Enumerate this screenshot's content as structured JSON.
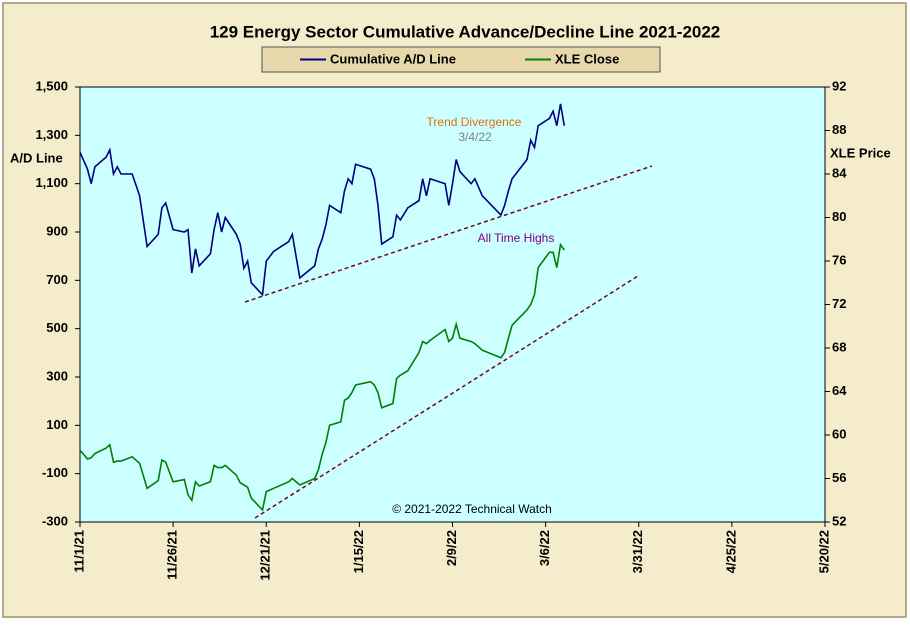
{
  "chart_data": {
    "type": "line",
    "title": "129 Energy Sector Cumulative Advance/Decline Line 2021-2022",
    "y_label": "A/D Line",
    "y2_label": "XLE Price",
    "annotations": [
      "Trend Divergence",
      "3/4/22",
      "All Time Highs",
      "© 2021-2022 Technical Watch"
    ],
    "x": [
      "11/1/21",
      "11/3/21",
      "11/4/21",
      "11/5/21",
      "11/8/21",
      "11/9/21",
      "11/10/21",
      "11/11/21",
      "11/12/21",
      "11/15/21",
      "11/17/21",
      "11/19/21",
      "11/22/21",
      "11/23/21",
      "11/24/21",
      "11/26/21",
      "11/29/21",
      "11/30/21",
      "12/1/21",
      "12/2/21",
      "12/3/21",
      "12/6/21",
      "12/7/21",
      "12/8/21",
      "12/9/21",
      "12/10/21",
      "12/13/21",
      "12/14/21",
      "12/15/21",
      "12/16/21",
      "12/17/21",
      "12/20/21",
      "12/21/21",
      "12/23/21",
      "12/27/21",
      "12/28/21",
      "12/30/21",
      "1/3/22",
      "1/4/22",
      "1/5/22",
      "1/6/22",
      "1/7/22",
      "1/10/22",
      "1/11/22",
      "1/12/22",
      "1/13/22",
      "1/14/22",
      "1/18/22",
      "1/19/22",
      "1/20/22",
      "1/21/22",
      "1/24/22",
      "1/25/22",
      "1/26/22",
      "1/28/22",
      "1/31/22",
      "2/1/22",
      "2/2/22",
      "2/3/22",
      "2/7/22",
      "2/8/22",
      "2/9/22",
      "2/10/22",
      "2/11/22",
      "2/14/22",
      "2/15/22",
      "2/17/22",
      "2/22/22",
      "2/23/22",
      "2/24/22",
      "2/25/22",
      "3/1/22",
      "3/2/22",
      "3/3/22",
      "3/4/22",
      "3/7/22",
      "3/8/22",
      "3/9/22",
      "3/10/22",
      "3/11/22"
    ],
    "series": [
      {
        "name": "Cumulative A/D Line",
        "color": "#000080",
        "values": [
          1230,
          1160,
          1100,
          1170,
          1210,
          1240,
          1140,
          1170,
          1140,
          1140,
          1050,
          840,
          890,
          1000,
          1020,
          910,
          900,
          910,
          730,
          830,
          760,
          810,
          910,
          980,
          900,
          960,
          890,
          850,
          750,
          780,
          690,
          640,
          780,
          820,
          860,
          890,
          710,
          760,
          830,
          870,
          930,
          1010,
          980,
          1070,
          1120,
          1100,
          1180,
          1160,
          1120,
          1010,
          850,
          880,
          970,
          950,
          1000,
          1030,
          1120,
          1050,
          1120,
          1100,
          1010,
          1100,
          1200,
          1150,
          1100,
          1120,
          1050,
          970,
          1010,
          1070,
          1120,
          1200,
          1280,
          1250,
          1340,
          1370,
          1400,
          1340,
          1430,
          1340
        ]
      },
      {
        "name": "XLE Close",
        "color": "#008000",
        "axis": "y2",
        "values": [
          58.6,
          57.8,
          57.9,
          58.3,
          58.8,
          59.1,
          57.5,
          57.6,
          57.6,
          58.0,
          57.4,
          55.1,
          55.8,
          57.7,
          57.5,
          55.7,
          55.9,
          54.5,
          54.0,
          55.7,
          55.3,
          55.7,
          57.2,
          57.0,
          57.0,
          57.2,
          56.3,
          55.6,
          55.4,
          55.2,
          54.2,
          53.1,
          54.8,
          55.1,
          55.7,
          56.0,
          55.4,
          56.0,
          56.8,
          58.2,
          59.3,
          60.9,
          61.2,
          63.2,
          63.4,
          63.9,
          64.6,
          64.9,
          64.6,
          63.9,
          62.5,
          62.9,
          65.2,
          65.5,
          65.9,
          67.6,
          68.6,
          68.4,
          68.7,
          69.7,
          68.6,
          68.9,
          70.2,
          68.9,
          68.6,
          68.4,
          67.8,
          67.1,
          67.6,
          68.9,
          70.1,
          71.5,
          72.0,
          72.9,
          75.4,
          76.8,
          76.8,
          75.4,
          77.5,
          77.0
        ]
      }
    ],
    "xlim": [
      "11/1/21",
      "5/20/22"
    ],
    "xticks": [
      "11/1/21",
      "11/26/21",
      "12/21/21",
      "1/15/22",
      "2/9/22",
      "3/6/22",
      "3/31/22",
      "4/25/22",
      "5/20/22"
    ],
    "ylim": [
      -300,
      1500
    ],
    "yticks": [
      -300,
      -100,
      100,
      300,
      500,
      700,
      900,
      {
        "value": 1100,
        "label": "1,100"
      },
      {
        "value": 1300,
        "label": "1,300"
      },
      {
        "value": 1500,
        "label": "1,500"
      }
    ],
    "y2lim": [
      52,
      92
    ],
    "y2ticks": [
      52,
      56,
      60,
      64,
      68,
      72,
      76,
      80,
      84,
      88,
      92
    ],
    "legend": "top"
  }
}
